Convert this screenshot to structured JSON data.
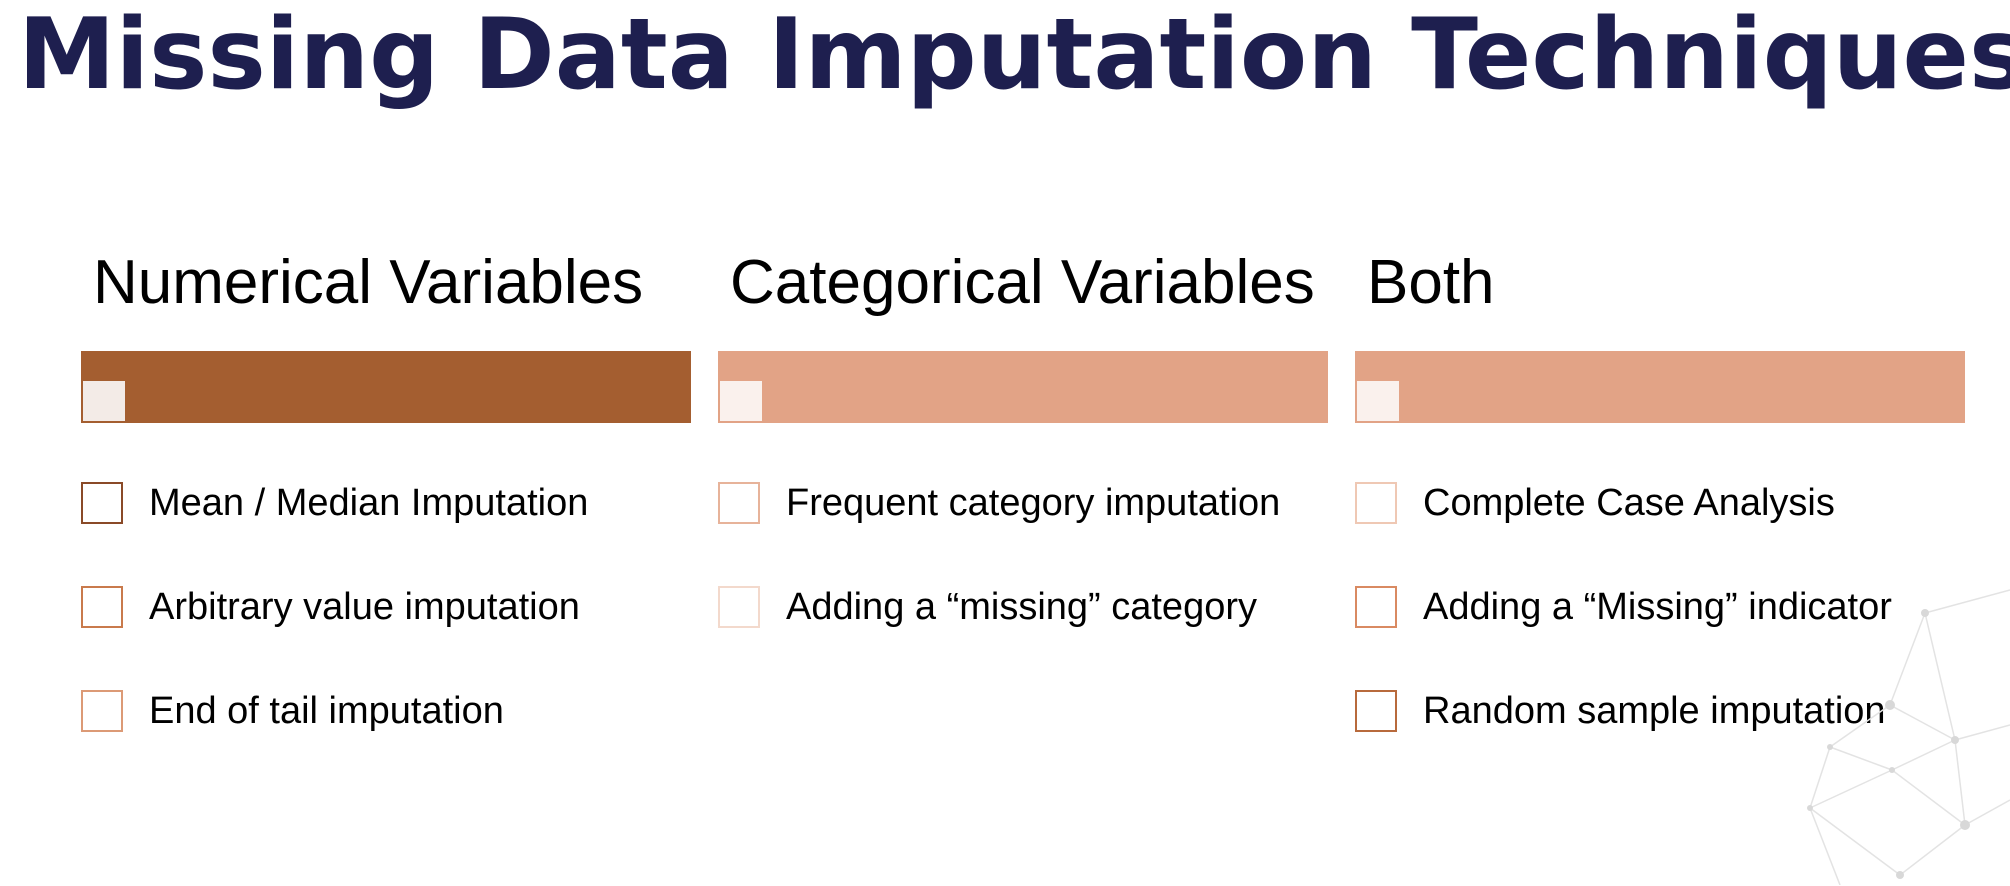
{
  "title": "Missing Data Imputation Techniques",
  "columns": [
    {
      "heading": "Numerical Variables",
      "bar_color": "#a45e30",
      "checkbox_color": "#a0552e",
      "items": [
        "Mean / Median Imputation",
        "Arbitrary value imputation",
        "End of tail imputation"
      ]
    },
    {
      "heading": "Categorical Variables",
      "bar_color": "#e2a386",
      "checkbox_color": "#e9b9a2",
      "items": [
        "Frequent category imputation",
        "Adding a “missing” category"
      ]
    },
    {
      "heading": "Both",
      "bar_color": "#e2a386",
      "checkbox_color": "#d98a62",
      "items": [
        "Complete Case Analysis",
        "Adding a “Missing” indicator",
        "Random sample imputation"
      ]
    }
  ]
}
